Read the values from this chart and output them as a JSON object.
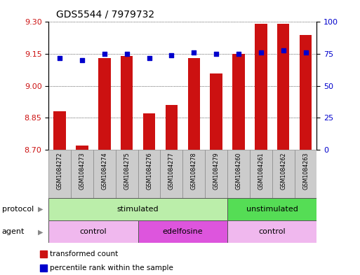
{
  "title": "GDS5544 / 7979732",
  "samples": [
    "GSM1084272",
    "GSM1084273",
    "GSM1084274",
    "GSM1084275",
    "GSM1084276",
    "GSM1084277",
    "GSM1084278",
    "GSM1084279",
    "GSM1084260",
    "GSM1084261",
    "GSM1084262",
    "GSM1084263"
  ],
  "bar_values": [
    8.88,
    8.72,
    9.13,
    9.14,
    8.87,
    8.91,
    9.13,
    9.06,
    9.15,
    9.29,
    9.29,
    9.24
  ],
  "scatter_values": [
    72,
    70,
    75,
    75,
    72,
    74,
    76,
    75,
    75,
    76,
    78,
    76
  ],
  "ylim_left": [
    8.7,
    9.3
  ],
  "ylim_right": [
    0,
    100
  ],
  "yticks_left": [
    8.7,
    8.85,
    9.0,
    9.15,
    9.3
  ],
  "yticks_right": [
    0,
    25,
    50,
    75,
    100
  ],
  "bar_color": "#cc1111",
  "scatter_color": "#0000cc",
  "bar_width": 0.55,
  "protocol_groups": [
    {
      "label": "stimulated",
      "start": 0,
      "end": 8,
      "color": "#bbeeaa"
    },
    {
      "label": "unstimulated",
      "start": 8,
      "end": 12,
      "color": "#55dd55"
    }
  ],
  "agent_groups": [
    {
      "label": "control",
      "start": 0,
      "end": 4,
      "color": "#f0b8ee"
    },
    {
      "label": "edelfosine",
      "start": 4,
      "end": 8,
      "color": "#dd55dd"
    },
    {
      "label": "control",
      "start": 8,
      "end": 12,
      "color": "#f0b8ee"
    }
  ],
  "legend_bar_label": "transformed count",
  "legend_scatter_label": "percentile rank within the sample",
  "protocol_label": "protocol",
  "agent_label": "agent",
  "background_color": "#ffffff",
  "grid_color": "#000000",
  "sample_bg_color": "#cccccc",
  "title_fontsize": 10,
  "axis_fontsize": 8,
  "label_fontsize": 8,
  "tick_fontsize": 8
}
